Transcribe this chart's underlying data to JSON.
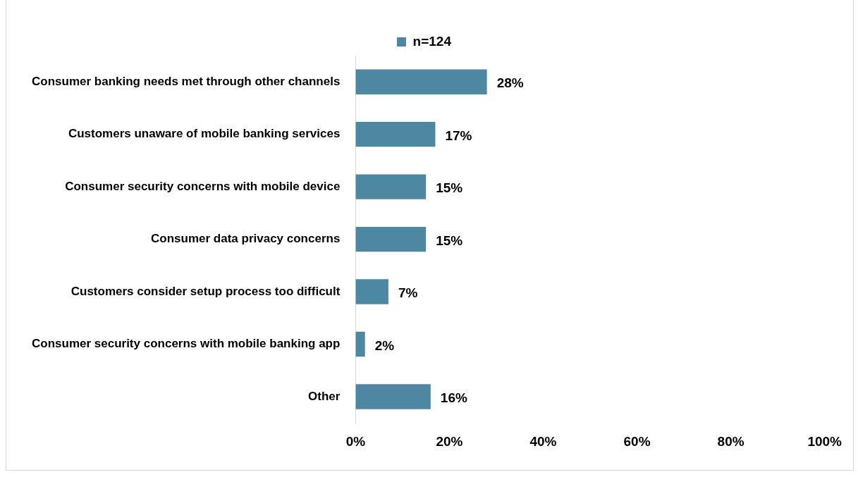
{
  "chart_data": {
    "type": "bar",
    "orientation": "horizontal",
    "categories": [
      "Consumer banking needs met through other channels",
      "Customers unaware of mobile banking services",
      "Consumer security concerns with mobile device",
      "Consumer data privacy concerns",
      "Customers consider setup process too difficult",
      "Consumer security concerns with mobile banking app",
      "Other"
    ],
    "series": [
      {
        "name": "n=124",
        "color": "#4e87a1",
        "values": [
          28,
          17,
          15,
          15,
          7,
          2,
          16
        ],
        "value_labels": [
          "28%",
          "17%",
          "15%",
          "15%",
          "7%",
          "2%",
          "16%"
        ]
      }
    ],
    "xlim": [
      0,
      100
    ],
    "xticks": [
      {
        "value": 0,
        "label": "0%"
      },
      {
        "value": 20,
        "label": "20%"
      },
      {
        "value": 40,
        "label": "40%"
      },
      {
        "value": 60,
        "label": "60%"
      },
      {
        "value": 80,
        "label": "80%"
      },
      {
        "value": 100,
        "label": "100%"
      }
    ],
    "legend": "top"
  }
}
